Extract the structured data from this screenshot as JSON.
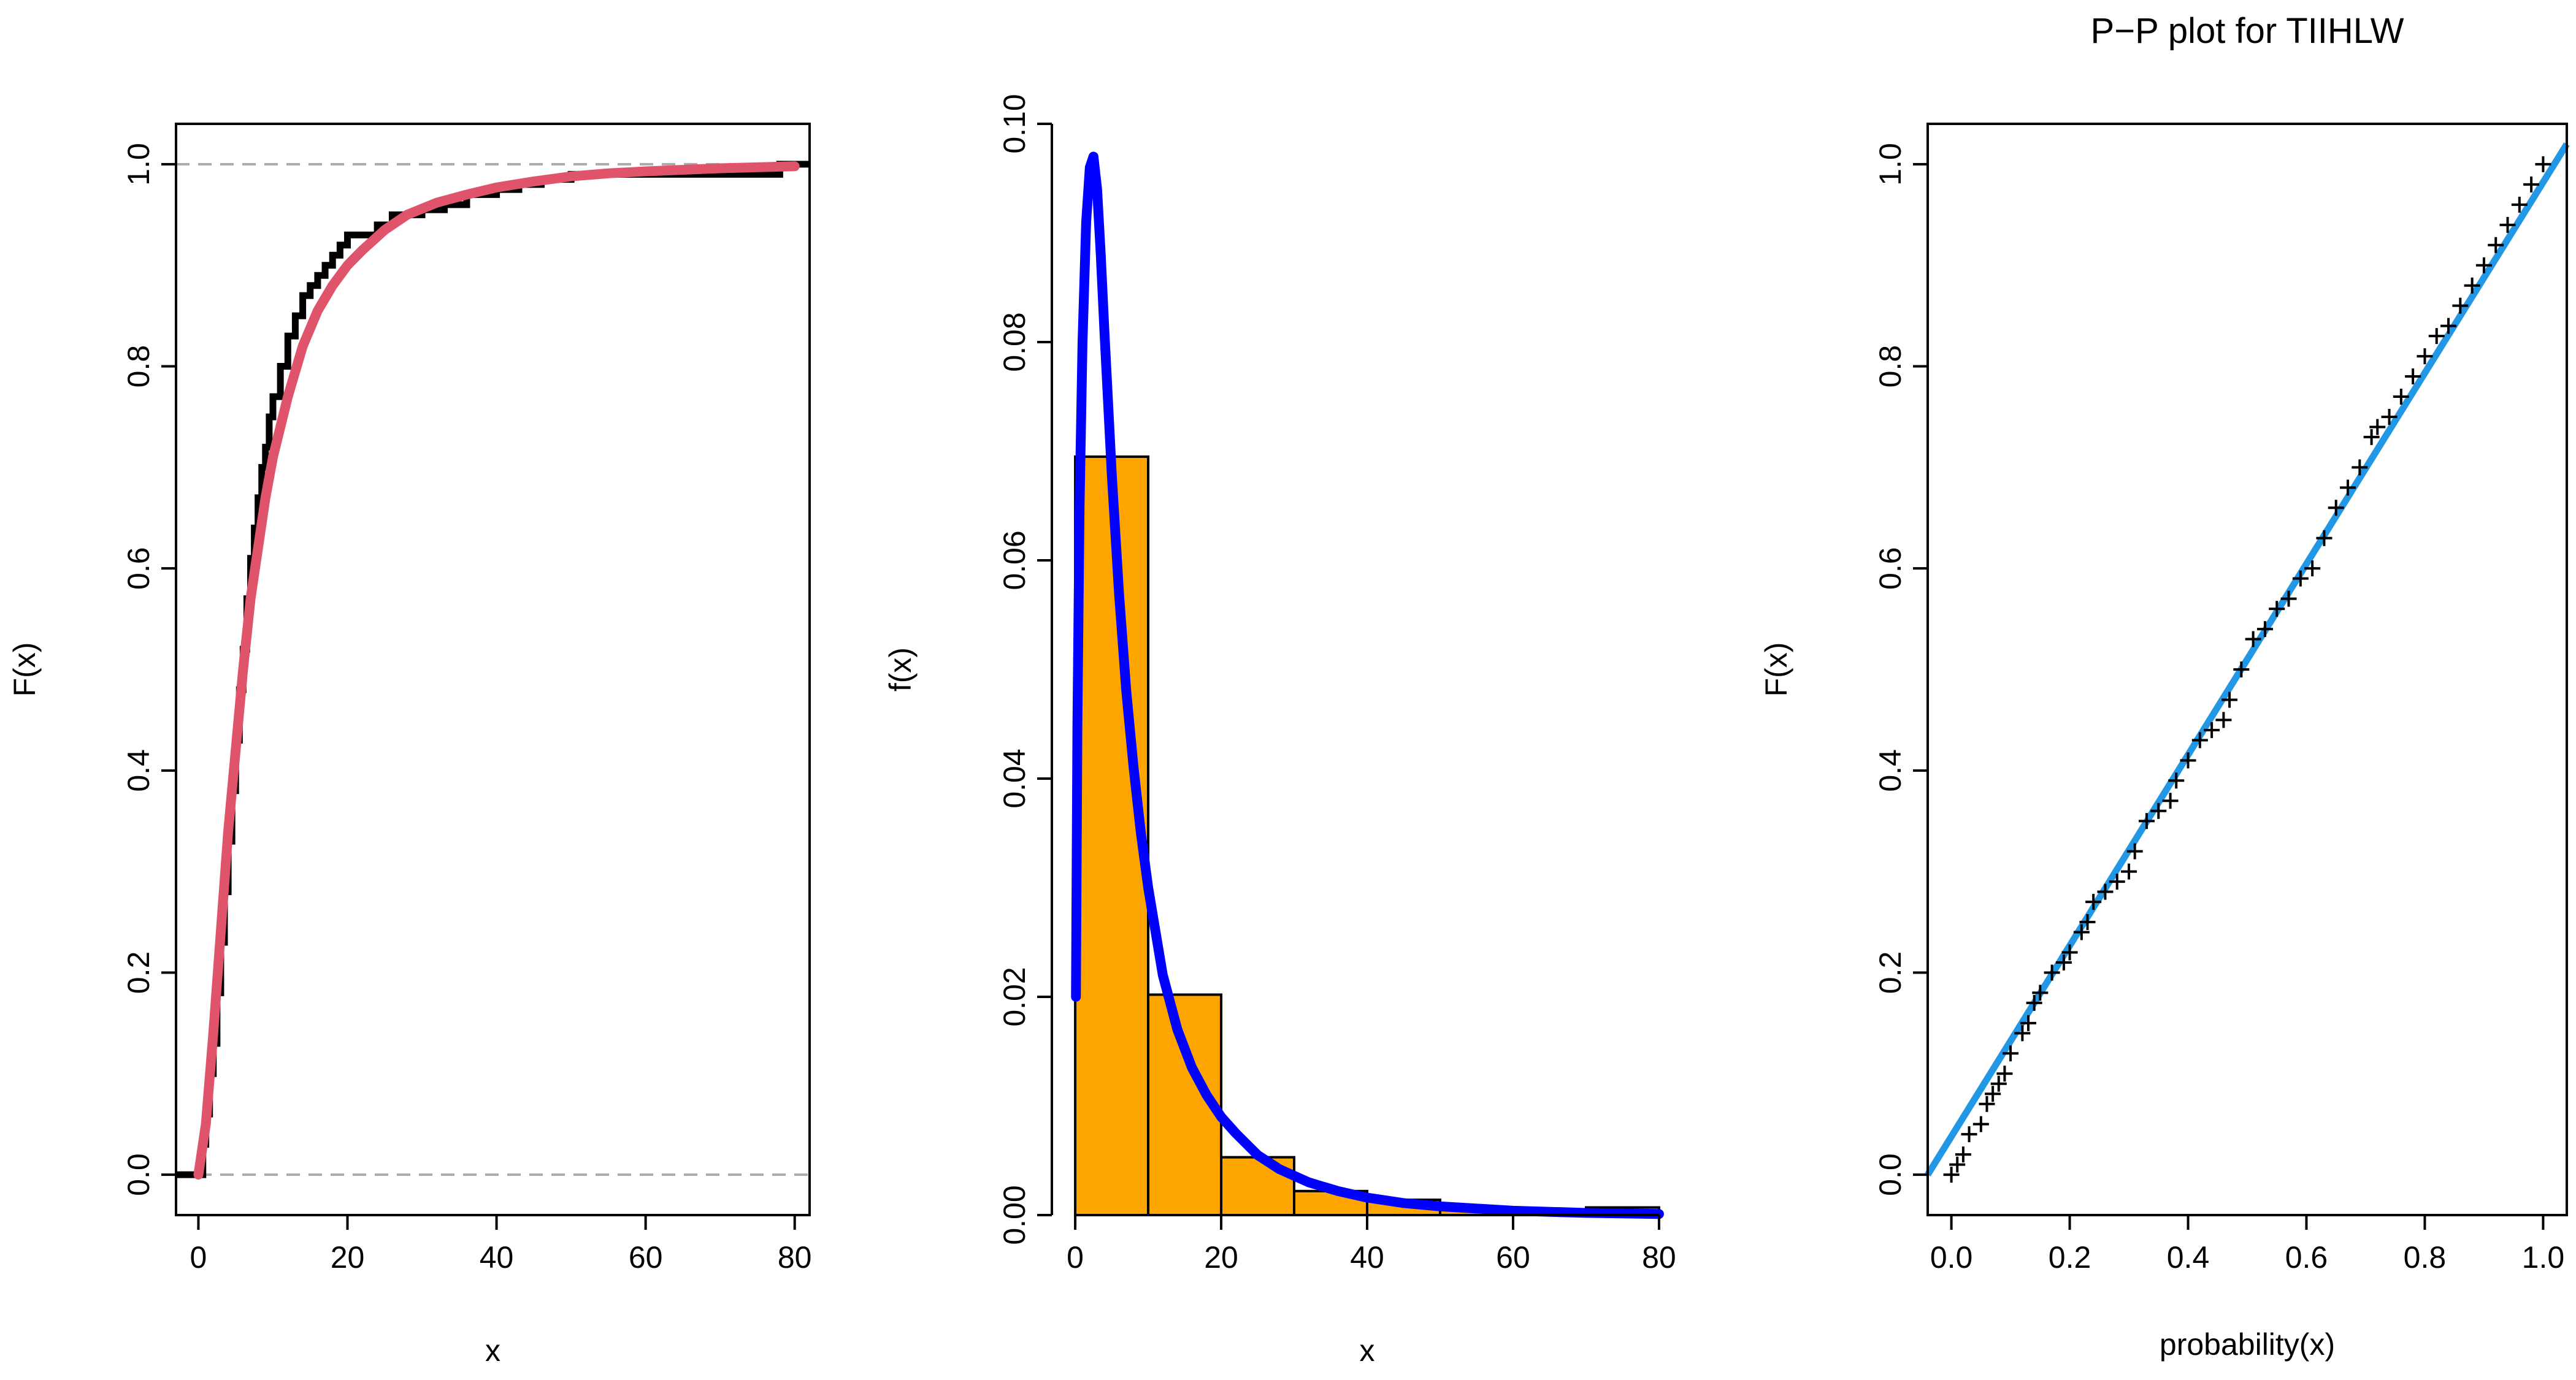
{
  "chart_data": [
    {
      "type": "line",
      "panel": "ecdf",
      "title": "",
      "xlabel": "x",
      "ylabel": "F(x)",
      "xlim": [
        -3,
        82
      ],
      "ylim": [
        -0.04,
        1.04
      ],
      "x_ticks": [
        0,
        20,
        40,
        60,
        80
      ],
      "y_ticks": [
        0.0,
        0.2,
        0.4,
        0.6,
        0.8,
        1.0
      ],
      "x_tick_labels": [
        "0",
        "20",
        "40",
        "60",
        "80"
      ],
      "y_tick_labels": [
        "0.0",
        "0.2",
        "0.4",
        "0.6",
        "0.8",
        "1.0"
      ],
      "reference_lines": [
        0.0,
        1.0
      ],
      "reference_color": "#aaaaaa",
      "grid": false,
      "series": [
        {
          "style": "step",
          "color": "#000000",
          "x": [
            -3,
            0.1,
            0.6,
            1.0,
            1.5,
            2.0,
            2.5,
            3.0,
            3.5,
            4.0,
            4.5,
            5.0,
            5.5,
            6.0,
            6.5,
            7.0,
            7.5,
            8.0,
            8.5,
            9.0,
            9.5,
            10.0,
            11.0,
            12.0,
            13.0,
            14.0,
            15.0,
            16.0,
            17.0,
            18.0,
            19.0,
            20.0,
            22.0,
            24.0,
            26.0,
            28.0,
            30.0,
            33.0,
            36.0,
            40.0,
            43.0,
            46.0,
            50.0,
            56.0,
            62.0,
            70.0,
            78.0,
            82
          ],
          "y": [
            0.0,
            0.0,
            0.03,
            0.06,
            0.1,
            0.13,
            0.18,
            0.23,
            0.28,
            0.33,
            0.38,
            0.43,
            0.48,
            0.52,
            0.57,
            0.61,
            0.64,
            0.67,
            0.7,
            0.72,
            0.75,
            0.77,
            0.8,
            0.83,
            0.85,
            0.87,
            0.88,
            0.89,
            0.9,
            0.91,
            0.92,
            0.93,
            0.93,
            0.94,
            0.95,
            0.95,
            0.955,
            0.96,
            0.97,
            0.975,
            0.98,
            0.985,
            0.99,
            0.99,
            0.99,
            0.99,
            1.0,
            1.0
          ]
        },
        {
          "style": "line",
          "color": "#df536b",
          "x": [
            0,
            1,
            2,
            3,
            4,
            5,
            6,
            7,
            8,
            9,
            10,
            12,
            14,
            16,
            18,
            20,
            22,
            25,
            28,
            32,
            36,
            40,
            45,
            50,
            55,
            60,
            70,
            80
          ],
          "y": [
            0.0,
            0.05,
            0.14,
            0.24,
            0.34,
            0.42,
            0.5,
            0.57,
            0.62,
            0.67,
            0.71,
            0.77,
            0.82,
            0.855,
            0.88,
            0.9,
            0.915,
            0.935,
            0.95,
            0.962,
            0.97,
            0.977,
            0.983,
            0.988,
            0.991,
            0.993,
            0.996,
            0.998
          ]
        }
      ]
    },
    {
      "type": "bar",
      "panel": "histogram-density",
      "title": "",
      "xlabel": "x",
      "ylabel": "f(x)",
      "xlim": [
        -3.2,
        83.2
      ],
      "ylim": [
        0,
        0.1
      ],
      "x_ticks": [
        0,
        20,
        40,
        60,
        80
      ],
      "y_ticks": [
        0.0,
        0.02,
        0.04,
        0.06,
        0.08,
        0.1
      ],
      "x_tick_labels": [
        "0",
        "20",
        "40",
        "60",
        "80"
      ],
      "y_tick_labels": [
        "0.00",
        "0.02",
        "0.04",
        "0.06",
        "0.08",
        "0.10"
      ],
      "grid": false,
      "bins": [
        {
          "from": 0,
          "to": 10,
          "value": 0.0695
        },
        {
          "from": 10,
          "to": 20,
          "value": 0.0202
        },
        {
          "from": 20,
          "to": 30,
          "value": 0.0053
        },
        {
          "from": 30,
          "to": 40,
          "value": 0.0022
        },
        {
          "from": 40,
          "to": 50,
          "value": 0.0014
        },
        {
          "from": 50,
          "to": 60,
          "value": 0.0005
        },
        {
          "from": 60,
          "to": 70,
          "value": 0.0003
        },
        {
          "from": 70,
          "to": 80,
          "value": 0.0007
        }
      ],
      "bar_color": "#ffa500",
      "density_curve": {
        "color": "#0000ff",
        "x": [
          0.1,
          0.3,
          0.6,
          1.0,
          1.5,
          2.0,
          2.5,
          3.0,
          3.5,
          4.0,
          5.0,
          6.0,
          7.0,
          8.0,
          9.0,
          10.0,
          12.0,
          14.0,
          16.0,
          18.0,
          20.0,
          22.0,
          25.0,
          28.0,
          32.0,
          36.0,
          40.0,
          45.0,
          50.0,
          60.0,
          70.0,
          80.0
        ],
        "y": [
          0.02,
          0.045,
          0.065,
          0.08,
          0.091,
          0.096,
          0.097,
          0.094,
          0.088,
          0.081,
          0.068,
          0.057,
          0.048,
          0.041,
          0.035,
          0.03,
          0.022,
          0.017,
          0.0135,
          0.011,
          0.009,
          0.0075,
          0.0055,
          0.0042,
          0.003,
          0.0022,
          0.0016,
          0.0011,
          0.0008,
          0.0004,
          0.0002,
          0.0001
        ]
      }
    },
    {
      "type": "scatter",
      "panel": "pp-plot",
      "title": "P−P plot for  TIIHLW",
      "xlabel": "probability(x)",
      "ylabel": "F(x)",
      "xlim": [
        -0.04,
        1.04
      ],
      "ylim": [
        -0.04,
        1.04
      ],
      "x_ticks": [
        0.0,
        0.2,
        0.4,
        0.6,
        0.8,
        1.0
      ],
      "y_ticks": [
        0.0,
        0.2,
        0.4,
        0.6,
        0.8,
        1.0
      ],
      "x_tick_labels": [
        "0.0",
        "0.2",
        "0.4",
        "0.6",
        "0.8",
        "1.0"
      ],
      "y_tick_labels": [
        "0.0",
        "0.2",
        "0.4",
        "0.6",
        "0.8",
        "1.0"
      ],
      "grid": false,
      "point_marker": "+",
      "point_color": "#000000",
      "points_x": [
        0.0,
        0.01,
        0.02,
        0.03,
        0.05,
        0.06,
        0.07,
        0.08,
        0.09,
        0.1,
        0.12,
        0.13,
        0.14,
        0.15,
        0.17,
        0.19,
        0.2,
        0.22,
        0.23,
        0.24,
        0.26,
        0.28,
        0.3,
        0.31,
        0.33,
        0.35,
        0.37,
        0.38,
        0.4,
        0.42,
        0.44,
        0.46,
        0.47,
        0.49,
        0.51,
        0.53,
        0.55,
        0.57,
        0.59,
        0.61,
        0.63,
        0.65,
        0.67,
        0.69,
        0.71,
        0.72,
        0.74,
        0.76,
        0.78,
        0.8,
        0.82,
        0.84,
        0.86,
        0.88,
        0.9,
        0.92,
        0.94,
        0.96,
        0.98,
        1.0
      ],
      "points_y": [
        0.0,
        0.01,
        0.02,
        0.04,
        0.05,
        0.07,
        0.08,
        0.09,
        0.1,
        0.12,
        0.14,
        0.15,
        0.17,
        0.18,
        0.2,
        0.21,
        0.22,
        0.24,
        0.25,
        0.27,
        0.28,
        0.29,
        0.3,
        0.32,
        0.35,
        0.36,
        0.37,
        0.39,
        0.41,
        0.43,
        0.44,
        0.45,
        0.47,
        0.5,
        0.53,
        0.54,
        0.56,
        0.57,
        0.59,
        0.6,
        0.63,
        0.66,
        0.68,
        0.7,
        0.73,
        0.74,
        0.75,
        0.77,
        0.79,
        0.81,
        0.83,
        0.84,
        0.86,
        0.88,
        0.9,
        0.92,
        0.94,
        0.96,
        0.98,
        1.0
      ],
      "reference_line": {
        "color": "#2297e6",
        "x": [
          -0.04,
          1.04
        ],
        "y": [
          0.0,
          1.02
        ]
      }
    }
  ]
}
